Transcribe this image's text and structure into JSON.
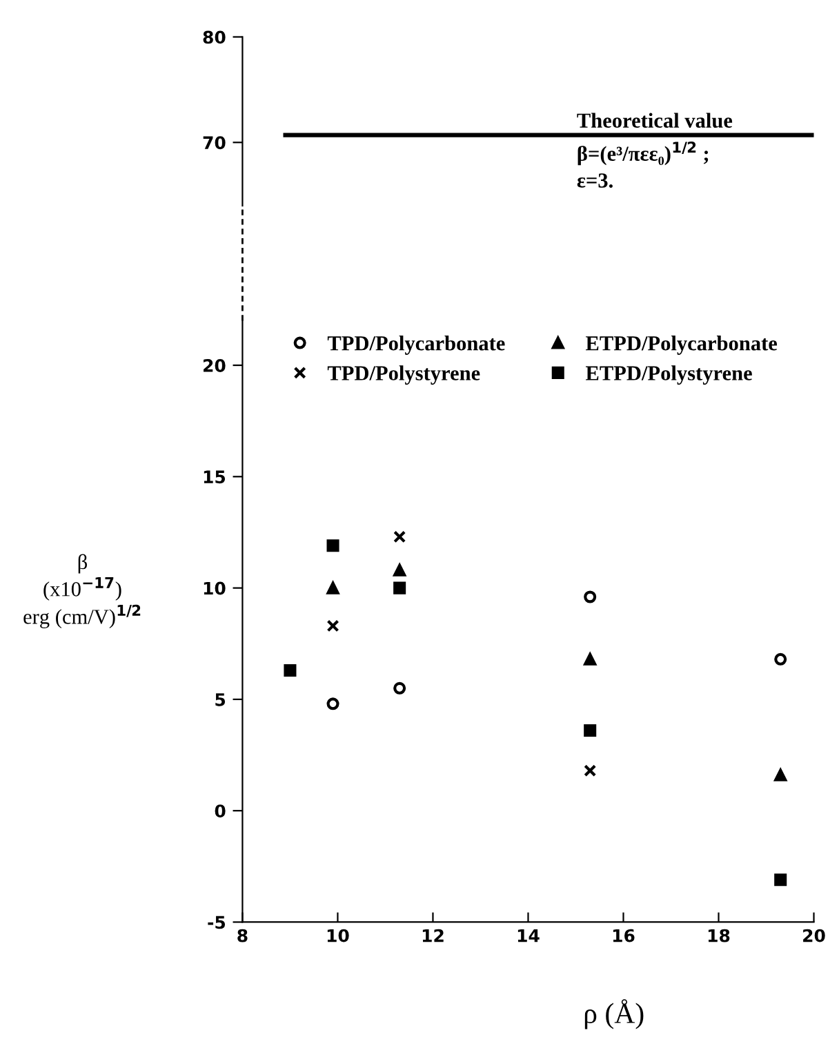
{
  "chart_data": [
    {
      "type": "line",
      "xlim": [
        8,
        20
      ],
      "ylim": [
        64,
        80
      ],
      "yticks": [
        70,
        80
      ],
      "tick_labels": "y",
      "series": [
        {
          "color": "#000000",
          "x": [
            8.9,
            20
          ],
          "values": [
            70.7,
            70.7
          ],
          "marker": "none",
          "line_style": "solid"
        }
      ],
      "annotations": [
        "Theoretical value\nβ=(e³/πεε₀)$^{1/2}$ ;\nε=3."
      ]
    },
    {
      "type": "scatter",
      "xlabel": "ρ (Å)",
      "ylabel": "β\n(x10$^{−17}$)\nerg (cm/V)$^{1/2}$",
      "xlim": [
        8,
        20
      ],
      "ylim": [
        -5,
        22
      ],
      "xticks": [
        8,
        10,
        12,
        14,
        16,
        18,
        20
      ],
      "yticks": [
        -5,
        0,
        5,
        10,
        15,
        20
      ],
      "legend": "top",
      "grid": false,
      "series": [
        {
          "name": "TPD/Polycarbonate",
          "color": "#000000",
          "marker": "circle",
          "x": [
            9.9,
            11.3,
            15.3,
            19.3
          ],
          "values": [
            4.8,
            5.5,
            9.6,
            6.8
          ]
        },
        {
          "name": "TPD/Polystyrene",
          "color": "#000000",
          "marker": "cross",
          "x": [
            9.9,
            11.3,
            15.3
          ],
          "values": [
            8.3,
            12.3,
            1.8
          ]
        },
        {
          "name": "ETPD/Polycarbonate",
          "color": "#000000",
          "marker": "triangle",
          "x": [
            9.9,
            11.3,
            15.3,
            19.3
          ],
          "values": [
            10.0,
            10.8,
            6.8,
            1.6
          ]
        },
        {
          "name": "ETPD/Polystyrene",
          "color": "#000000",
          "marker": "square",
          "x": [
            9.0,
            9.9,
            11.3,
            15.3,
            19.3
          ],
          "values": [
            6.3,
            11.9,
            10.0,
            3.6,
            -3.1
          ]
        }
      ]
    }
  ]
}
